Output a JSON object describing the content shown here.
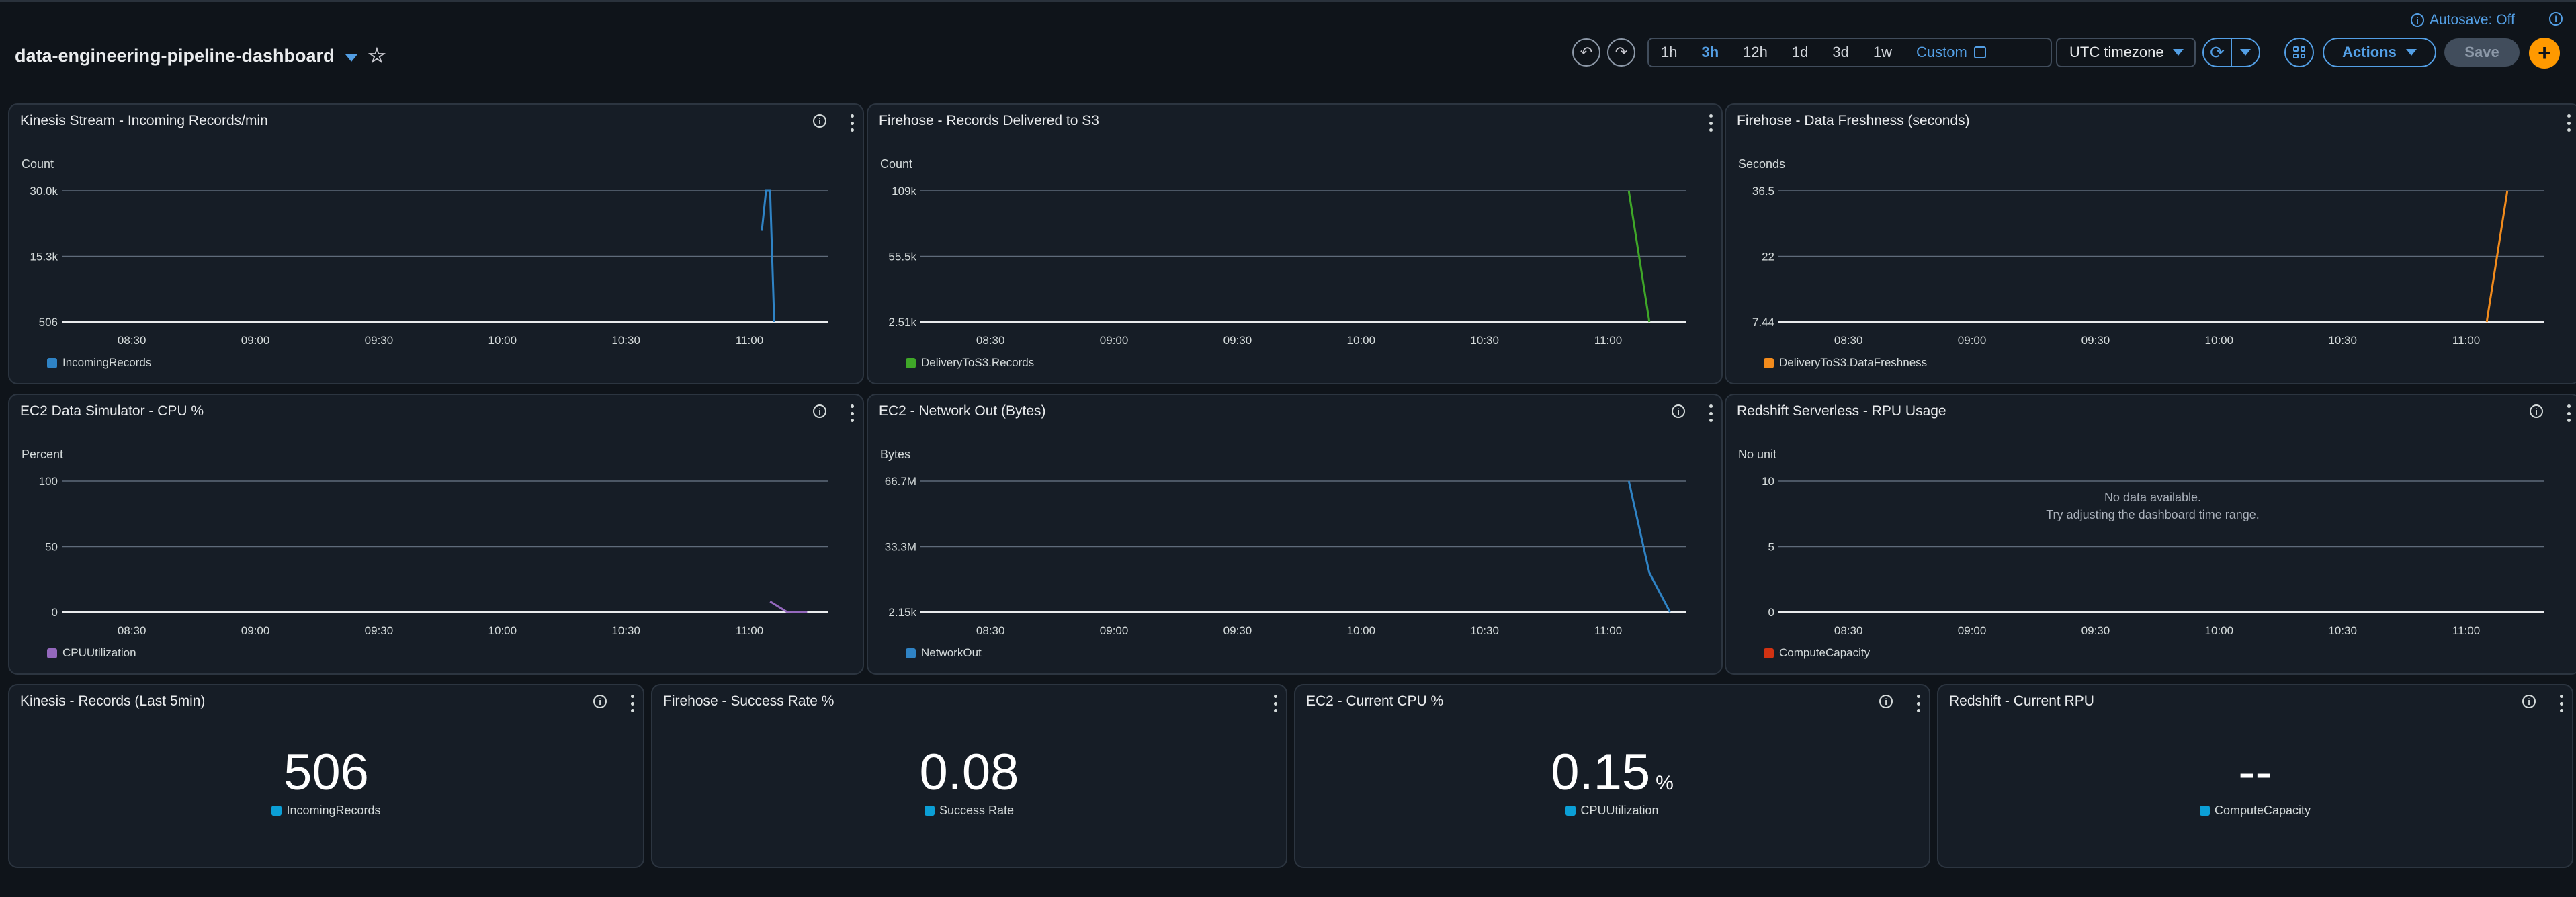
{
  "header": {
    "dashboard_title": "data-engineering-pipeline-dashboard",
    "autosave_label": "Autosave: Off",
    "time_ranges": [
      "1h",
      "3h",
      "12h",
      "1d",
      "3d",
      "1w"
    ],
    "active_range": "3h",
    "custom_label": "Custom",
    "timezone_label": "UTC timezone",
    "actions_label": "Actions",
    "save_label": "Save",
    "add_label": "+"
  },
  "widgets": [
    {
      "title": "Kinesis Stream - Incoming Records/min",
      "unit": "Count",
      "legend": "IncomingRecords"
    },
    {
      "title": "Firehose - Records Delivered to S3",
      "unit": "Count",
      "legend": "DeliveryToS3.Records"
    },
    {
      "title": "Firehose - Data Freshness (seconds)",
      "unit": "Seconds",
      "legend": "DeliveryToS3.DataFreshness"
    },
    {
      "title": "EC2 Data Simulator - CPU %",
      "unit": "Percent",
      "legend": "CPUUtilization"
    },
    {
      "title": "EC2 - Network Out (Bytes)",
      "unit": "Bytes",
      "legend": "NetworkOut"
    },
    {
      "title": "Redshift Serverless - RPU Usage",
      "unit": "No unit",
      "legend": "ComputeCapacity",
      "no_data_line1": "No data available.",
      "no_data_line2": "Try adjusting the dashboard time range."
    }
  ],
  "number_widgets": [
    {
      "title": "Kinesis - Records (Last 5min)",
      "value": "506",
      "unit": "",
      "legend": "IncomingRecords"
    },
    {
      "title": "Firehose - Success Rate %",
      "value": "0.08",
      "unit": "",
      "legend": "Success Rate"
    },
    {
      "title": "EC2 - Current CPU %",
      "value": "0.15",
      "unit": "%",
      "legend": "CPUUtilization"
    },
    {
      "title": "Redshift - Current RPU",
      "value": "--",
      "unit": "",
      "legend": "ComputeCapacity"
    }
  ],
  "chart_data": [
    {
      "type": "line",
      "title": "Kinesis Stream - Incoming Records/min",
      "ylabel": "Count",
      "x_ticks": [
        "08:30",
        "09:00",
        "09:30",
        "10:00",
        "10:30",
        "11:00"
      ],
      "y_ticks": [
        "506",
        "15.3k",
        "30.0k"
      ],
      "ylim": [
        506,
        30000
      ],
      "color": "#2f83c5",
      "series": [
        {
          "name": "IncomingRecords",
          "points": [
            [
              "11:03",
              21000
            ],
            [
              "11:04",
              30000
            ],
            [
              "11:05",
              30000
            ],
            [
              "11:06",
              506
            ]
          ]
        }
      ]
    },
    {
      "type": "line",
      "title": "Firehose - Records Delivered to S3",
      "ylabel": "Count",
      "x_ticks": [
        "08:30",
        "09:00",
        "09:30",
        "10:00",
        "10:30",
        "11:00"
      ],
      "y_ticks": [
        "2.51k",
        "55.5k",
        "109k"
      ],
      "ylim": [
        2510,
        109000
      ],
      "color": "#3fa728",
      "series": [
        {
          "name": "DeliveryToS3.Records",
          "points": [
            [
              "11:05",
              109000
            ],
            [
              "11:10",
              2510
            ]
          ]
        }
      ]
    },
    {
      "type": "line",
      "title": "Firehose - Data Freshness (seconds)",
      "ylabel": "Seconds",
      "x_ticks": [
        "08:30",
        "09:00",
        "09:30",
        "10:00",
        "10:30",
        "11:00"
      ],
      "y_ticks": [
        "7.44",
        "22",
        "36.5"
      ],
      "ylim": [
        7.44,
        36.5
      ],
      "color": "#f28b1c",
      "series": [
        {
          "name": "DeliveryToS3.DataFreshness",
          "points": [
            [
              "11:05",
              7.44
            ],
            [
              "11:10",
              36.5
            ]
          ]
        }
      ]
    },
    {
      "type": "line",
      "title": "EC2 Data Simulator - CPU %",
      "ylabel": "Percent",
      "x_ticks": [
        "08:30",
        "09:00",
        "09:30",
        "10:00",
        "10:30",
        "11:00"
      ],
      "y_ticks": [
        "0",
        "50",
        "100"
      ],
      "ylim": [
        0,
        100
      ],
      "color": "#9468bd",
      "series": [
        {
          "name": "CPUUtilization",
          "points": [
            [
              "11:05",
              8
            ],
            [
              "11:09",
              0.3
            ],
            [
              "11:14",
              0.15
            ]
          ]
        }
      ]
    },
    {
      "type": "line",
      "title": "EC2 - Network Out (Bytes)",
      "ylabel": "Bytes",
      "x_ticks": [
        "08:30",
        "09:00",
        "09:30",
        "10:00",
        "10:30",
        "11:00"
      ],
      "y_ticks": [
        "2.15k",
        "33.3M",
        "66.7M"
      ],
      "ylim": [
        2150,
        66700000
      ],
      "color": "#2f83c5",
      "series": [
        {
          "name": "NetworkOut",
          "points": [
            [
              "11:05",
              66700000
            ],
            [
              "11:10",
              20000000
            ],
            [
              "11:15",
              2150
            ]
          ]
        }
      ]
    },
    {
      "type": "line",
      "title": "Redshift Serverless - RPU Usage",
      "ylabel": "No unit",
      "x_ticks": [
        "08:30",
        "09:00",
        "09:30",
        "10:00",
        "10:30",
        "11:00"
      ],
      "y_ticks": [
        "0",
        "5",
        "10"
      ],
      "ylim": [
        0,
        10
      ],
      "color": "#d13212",
      "series": [
        {
          "name": "ComputeCapacity",
          "points": []
        }
      ]
    }
  ],
  "colors": {
    "accent": "#539fe5",
    "add_button": "#ff9900",
    "metric_swatch": "#0b9fd6"
  }
}
